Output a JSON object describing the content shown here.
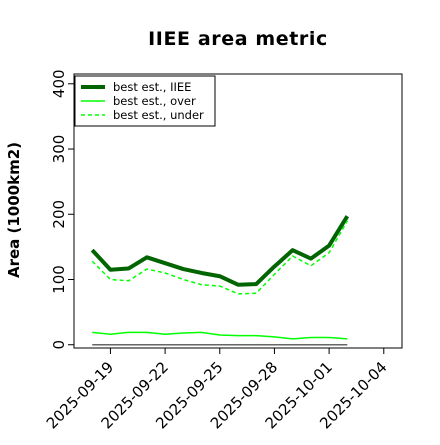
{
  "chart_data": {
    "type": "line",
    "title": "IIEE area metric",
    "xlabel": "",
    "ylabel": "Area (1000km2)",
    "x": [
      "2025-09-18",
      "2025-09-19",
      "2025-09-20",
      "2025-09-21",
      "2025-09-22",
      "2025-09-23",
      "2025-09-24",
      "2025-09-25",
      "2025-09-26",
      "2025-09-27",
      "2025-09-28",
      "2025-09-29",
      "2025-09-30",
      "2025-10-01",
      "2025-10-02"
    ],
    "xlim": [
      "2025-09-17",
      "2025-10-05"
    ],
    "ylim": [
      -5,
      415
    ],
    "x_ticks": [
      "2025-09-19",
      "2025-09-22",
      "2025-09-25",
      "2025-09-28",
      "2025-10-01",
      "2025-10-04"
    ],
    "y_ticks": [
      0,
      100,
      200,
      300,
      400
    ],
    "grid": false,
    "legend_position": "top-left",
    "series": [
      {
        "name": "best est., IIEE",
        "color": "#006400",
        "style": "solid-thick",
        "values": [
          145,
          115,
          117,
          134,
          125,
          116,
          110,
          105,
          92,
          93,
          120,
          145,
          132,
          152,
          197
        ]
      },
      {
        "name": "best est., over",
        "color": "#00ff00",
        "style": "solid",
        "values": [
          19,
          16,
          19,
          19,
          16,
          18,
          19,
          15,
          14,
          14,
          12,
          9,
          11,
          11,
          9
        ]
      },
      {
        "name": "best est., under",
        "color": "#00ff00",
        "style": "dashed",
        "values": [
          128,
          100,
          98,
          116,
          110,
          100,
          92,
          90,
          78,
          79,
          108,
          136,
          121,
          141,
          190
        ]
      },
      {
        "name": "",
        "color": "#666666",
        "style": "baseline",
        "values": [
          0,
          0,
          0,
          0,
          0,
          0,
          0,
          0,
          0,
          0,
          0,
          0,
          0,
          0,
          0
        ]
      }
    ]
  }
}
